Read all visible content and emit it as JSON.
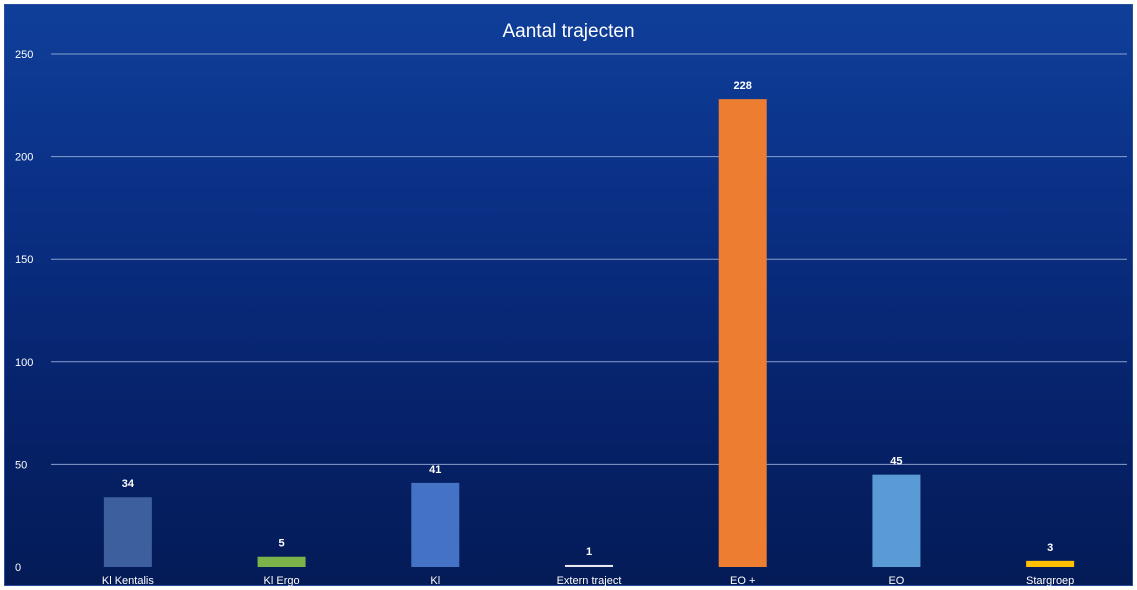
{
  "chart_data": {
    "type": "bar",
    "title": "Aantal trajecten",
    "xlabel": "",
    "ylabel": "",
    "categories": [
      "Kl Kentalis",
      "Kl Ergo",
      "Kl",
      "Extern traject",
      "EO +",
      "EO",
      "Stargroep"
    ],
    "values": [
      34,
      5,
      41,
      1,
      228,
      45,
      3
    ],
    "data_labels": [
      "34",
      "5",
      "41",
      "1",
      "228",
      "45",
      "3"
    ],
    "bar_colors": [
      "#3d5f9e",
      "#79b34a",
      "#4472c4",
      "#e8e8ee",
      "#ed7d31",
      "#5b9bd5",
      "#ffc000"
    ],
    "ylim": [
      0,
      250
    ],
    "yticks": [
      0,
      50,
      100,
      150,
      200,
      250
    ],
    "ytick_labels": [
      "0",
      "50",
      "100",
      "150",
      "200",
      "250"
    ],
    "grid": true,
    "legend": "none"
  }
}
